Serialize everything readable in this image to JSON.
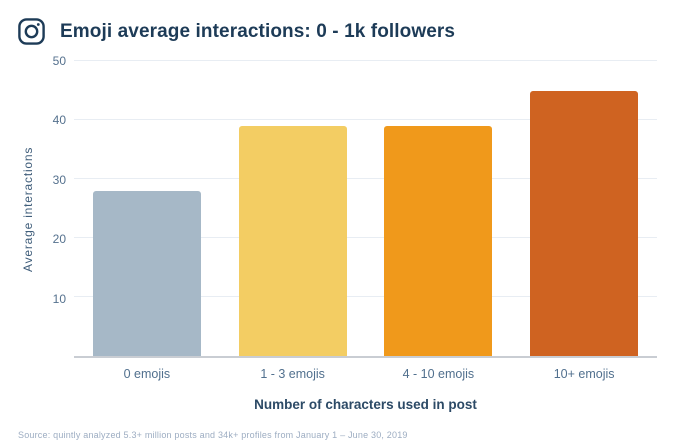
{
  "header": {
    "title": "Emoji average interactions: 0 - 1k followers",
    "icon": "instagram-icon"
  },
  "chart_data": {
    "type": "bar",
    "categories": [
      "0 emojis",
      "1 - 3 emojis",
      "4 - 10 emojis",
      "10+ emojis"
    ],
    "values": [
      28,
      39,
      39,
      45
    ],
    "bar_colors": [
      "#a6b8c7",
      "#f3cd63",
      "#f0991b",
      "#cf6321"
    ],
    "title": "Emoji average interactions: 0 - 1k followers",
    "xlabel": "Number of characters used in post",
    "ylabel": "Average interactions",
    "ylim": [
      0,
      50
    ],
    "yticks": [
      10,
      20,
      30,
      40,
      50
    ],
    "grid": "horizontal gridlines at each ytick",
    "legend": "none"
  },
  "footer": {
    "source": "Source: quintly analyzed 5.3+ million posts and 34k+ profiles from January 1 – June 30, 2019"
  },
  "colors": {
    "title_text": "#1d3b57",
    "tick_label": "#55718e",
    "y_axis_title": "#3f5d7a",
    "x_axis_title": "#2c4a66",
    "gridline": "#e8edf3",
    "axis_line": "#c9cdd3",
    "source_text": "#9dadc2",
    "background": "#ffffff"
  }
}
